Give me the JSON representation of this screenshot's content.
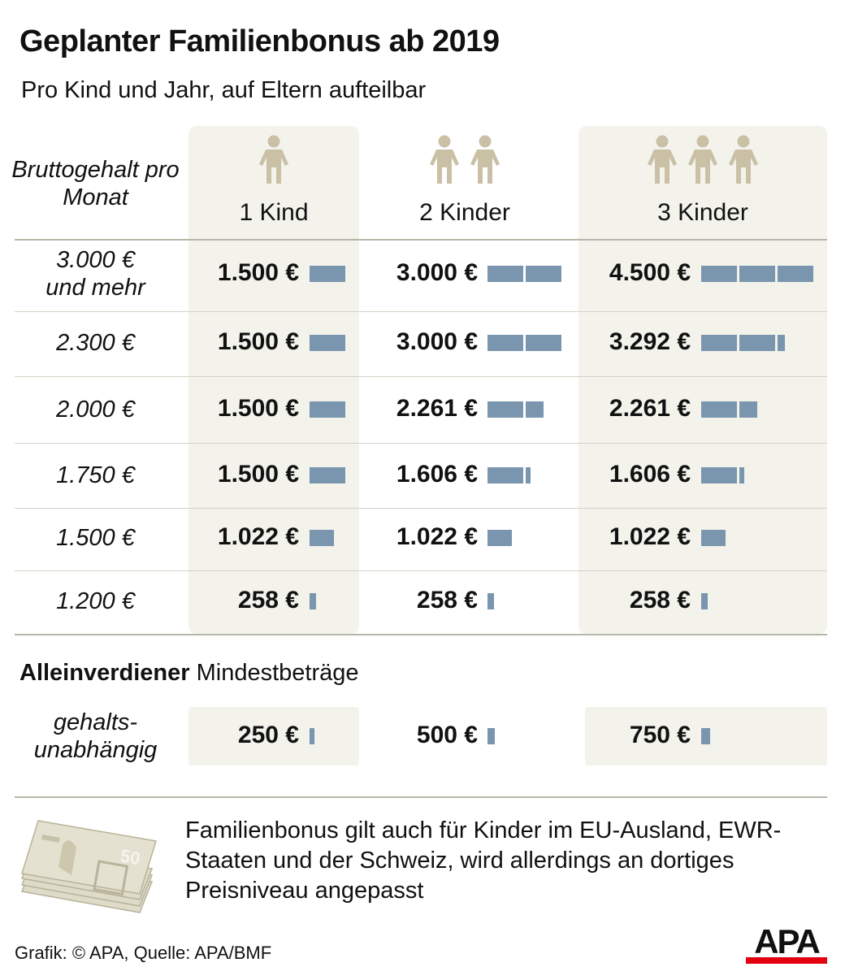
{
  "title": "Geplanter Familienbonus ab 2019",
  "subtitle": "Pro Kind und Jahr, auf Eltern aufteilbar",
  "chart_data": {
    "type": "table",
    "row_header": "Bruttogehalt pro Monat",
    "columns": [
      "1 Kind",
      "2 Kinder",
      "3 Kinder"
    ],
    "rows": [
      {
        "label": "3.000 € und mehr",
        "values": [
          1500,
          3000,
          4500
        ],
        "texts": [
          "1.500 €",
          "3.000 €",
          "4.500 €"
        ]
      },
      {
        "label": "2.300 €",
        "values": [
          1500,
          3000,
          3292
        ],
        "texts": [
          "1.500 €",
          "3.000 €",
          "3.292 €"
        ]
      },
      {
        "label": "2.000 €",
        "values": [
          1500,
          2261,
          2261
        ],
        "texts": [
          "1.500 €",
          "2.261 €",
          "2.261 €"
        ]
      },
      {
        "label": "1.750 €",
        "values": [
          1500,
          1606,
          1606
        ],
        "texts": [
          "1.500 €",
          "1.606 €",
          "1.606 €"
        ]
      },
      {
        "label": "1.500 €",
        "values": [
          1022,
          1022,
          1022
        ],
        "texts": [
          "1.022 €",
          "1.022 €",
          "1.022 €"
        ]
      },
      {
        "label": "1.200 €",
        "values": [
          258,
          258,
          258
        ],
        "texts": [
          "258 €",
          "258 €",
          "258 €"
        ]
      }
    ],
    "bar_color": "#7a96ae",
    "single_earner": {
      "title_bold": "Alleinverdiener",
      "title_rest": "Mindestbeträge",
      "label": "gehalts- unabhängig",
      "values": [
        250,
        500,
        750
      ],
      "texts": [
        "250 €",
        "500 €",
        "750 €"
      ]
    }
  },
  "note": "Familienbonus gilt auch für Kinder im EU-Ausland, EWR-Staaten und der Schweiz, wird allerdings an dortiges Preisniveau angepasst",
  "source": "Grafik: © APA, Quelle: APA/BMF",
  "logo": "APA",
  "colors": {
    "panel": "#f3f3ec",
    "person": "#c9c0a6",
    "logo_red": "#e3000f"
  }
}
